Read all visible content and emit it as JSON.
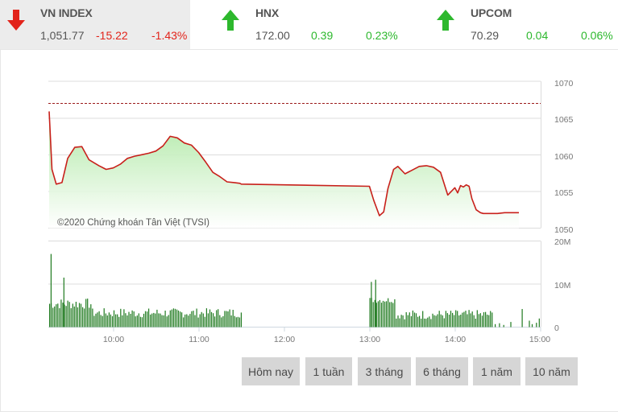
{
  "tickers": [
    {
      "name": "VN INDEX",
      "value": "1,051.77",
      "change": "-15.22",
      "percent": "-1.43%",
      "direction": "down",
      "icon": "arrow-down-icon",
      "color": "#e2231a",
      "active": true
    },
    {
      "name": "HNX",
      "value": "172.00",
      "change": "0.39",
      "percent": "0.23%",
      "direction": "up",
      "icon": "arrow-up-icon",
      "color": "#2db82d",
      "active": false
    },
    {
      "name": "UPCOM",
      "value": "70.29",
      "change": "0.04",
      "percent": "0.06%",
      "direction": "up",
      "icon": "arrow-up-icon",
      "color": "#2db82d",
      "active": false
    }
  ],
  "colors": {
    "down": "#e2231a",
    "up": "#2db82d",
    "price_line": "#c8201b",
    "fill_top": "#b7ecae",
    "fill_bottom": "#ffffff",
    "reference_line": "#9b1b1b",
    "volume_bar": "#1f7a1f",
    "grid": "#d9d9d9",
    "axis_text": "#666666",
    "button_bg": "#d6d6d6"
  },
  "watermark": "©2020 Chứng khoán Tân Việt (TVSI)",
  "range_buttons": [
    {
      "label": "Hôm nay"
    },
    {
      "label": "1 tuần"
    },
    {
      "label": "3 tháng"
    },
    {
      "label": "6 tháng"
    },
    {
      "label": "1 năm"
    },
    {
      "label": "10 năm"
    }
  ],
  "chart_data": [
    {
      "type": "line",
      "title": "VN INDEX intraday",
      "xlabel": "",
      "ylabel": "",
      "ylim": [
        1050,
        1070
      ],
      "y_ticks": [
        "1050",
        "1055",
        "1060",
        "1065",
        "1070"
      ],
      "x_ticks": [
        "10:00",
        "11:00",
        "12:00",
        "13:00",
        "14:00",
        "15:00"
      ],
      "grid": true,
      "reference_value": 1066.99,
      "reference_style": "dashed",
      "area_fill": true,
      "x": [
        "09:15",
        "09:17",
        "09:20",
        "09:24",
        "09:28",
        "09:33",
        "09:38",
        "09:43",
        "09:50",
        "09:55",
        "10:00",
        "10:05",
        "10:10",
        "10:15",
        "10:20",
        "10:25",
        "10:30",
        "10:35",
        "10:40",
        "10:45",
        "10:50",
        "10:55",
        "11:00",
        "11:05",
        "11:10",
        "11:15",
        "11:20",
        "11:25",
        "11:29",
        "11:30",
        "13:00",
        "13:03",
        "13:07",
        "13:10",
        "13:13",
        "13:17",
        "13:20",
        "13:25",
        "13:30",
        "13:35",
        "13:40",
        "13:45",
        "13:50",
        "13:55",
        "14:00",
        "14:02",
        "14:04",
        "14:06",
        "14:08",
        "14:10",
        "14:12",
        "14:15",
        "14:18",
        "14:20",
        "14:25",
        "14:30",
        "14:35",
        "14:45"
      ],
      "values": [
        1065.9,
        1058.0,
        1056.0,
        1056.2,
        1059.5,
        1061.0,
        1061.1,
        1059.3,
        1058.5,
        1058.0,
        1058.2,
        1058.7,
        1059.5,
        1059.8,
        1060.0,
        1060.2,
        1060.5,
        1061.2,
        1062.5,
        1062.3,
        1061.6,
        1061.3,
        1060.3,
        1059.0,
        1057.6,
        1057.0,
        1056.3,
        1056.2,
        1056.1,
        1056.0,
        1055.7,
        1053.8,
        1051.7,
        1052.2,
        1055.4,
        1058.0,
        1058.4,
        1057.4,
        1057.9,
        1058.4,
        1058.5,
        1058.3,
        1057.6,
        1054.5,
        1055.5,
        1054.8,
        1055.8,
        1055.6,
        1055.9,
        1055.7,
        1054.0,
        1052.5,
        1052.1,
        1052.0,
        1052.0,
        1052.0,
        1052.1,
        1052.1
      ]
    },
    {
      "type": "bar",
      "title": "Volume",
      "ylim": [
        0,
        20000000
      ],
      "y_ticks": [
        "0",
        "10M",
        "20M"
      ],
      "x_ticks": [
        "10:00",
        "11:00",
        "12:00",
        "13:00",
        "14:00",
        "15:00"
      ],
      "grid": true,
      "sessions": [
        {
          "start": "09:15",
          "end": "11:30",
          "typical_volume": "2M–4M",
          "peaks": [
            {
              "time": "09:16",
              "value": 17000000
            },
            {
              "time": "09:25",
              "value": 11500000
            }
          ]
        },
        {
          "start": "13:00",
          "end": "14:45",
          "typical_volume": "1M–4M",
          "peaks": [
            {
              "time": "13:01",
              "value": 10500000
            },
            {
              "time": "13:04",
              "value": 11000000
            }
          ]
        },
        {
          "start": "14:45",
          "end": "15:00",
          "typical_volume": "sparse",
          "peaks": [
            {
              "time": "14:47",
              "value": 4200000
            },
            {
              "time": "14:59",
              "value": 2000000
            }
          ]
        }
      ]
    }
  ]
}
